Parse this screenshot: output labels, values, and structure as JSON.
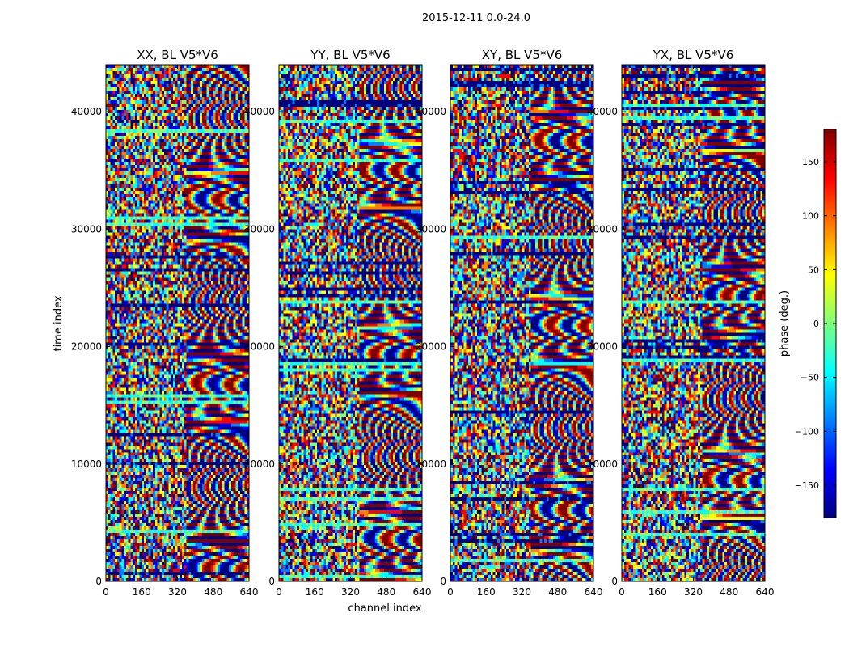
{
  "figure": {
    "suptitle": "2015-12-11 0.0-24.0"
  },
  "chart_data": {
    "type": "heatmap",
    "xlabel": "channel index",
    "ylabel": "time index",
    "xlim": [
      0,
      640
    ],
    "ylim": [
      0,
      44000
    ],
    "x_ticks": [
      0,
      160,
      320,
      480,
      640
    ],
    "y_ticks": [
      0,
      10000,
      20000,
      30000,
      40000
    ],
    "panels": [
      {
        "title": "XX, BL V5*V6"
      },
      {
        "title": "YY, BL V5*V6"
      },
      {
        "title": "XY, BL V5*V6"
      },
      {
        "title": "YX, BL V5*V6"
      }
    ],
    "colorbar": {
      "label": "phase (deg.)",
      "range": [
        -180,
        180
      ],
      "ticks": [
        -150,
        -100,
        -50,
        0,
        50,
        100,
        150
      ],
      "tick_labels": [
        "−150",
        "−100",
        "−50",
        "0",
        "50",
        "100",
        "150"
      ],
      "colormap": "jet",
      "colors": [
        "#00007f",
        "#0000ff",
        "#007fff",
        "#00ffff",
        "#7fff7f",
        "#ffff00",
        "#ff7f00",
        "#ff0000",
        "#7f0000"
      ]
    },
    "grid": false
  }
}
